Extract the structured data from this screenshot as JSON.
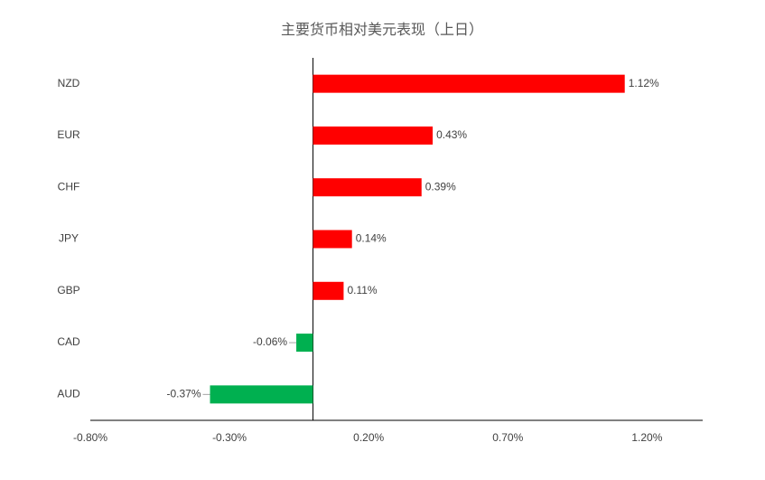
{
  "chart_data": {
    "type": "hbar",
    "title": "主要货币相对美元表现（上日）",
    "categories": [
      "NZD",
      "EUR",
      "CHF",
      "JPY",
      "GBP",
      "CAD",
      "AUD"
    ],
    "values": [
      1.12,
      0.43,
      0.39,
      0.14,
      0.11,
      -0.06,
      -0.37
    ],
    "value_labels": [
      "1.12%",
      "0.43%",
      "0.39%",
      "0.14%",
      "0.11%",
      "-0.06%",
      "-0.37%"
    ],
    "positive_color": "#ff0000",
    "negative_color": "#00b050",
    "xlim": [
      -0.8,
      1.4
    ],
    "xticks": [
      {
        "value": -0.8,
        "label": "-0.80%"
      },
      {
        "value": -0.3,
        "label": "-0.30%"
      },
      {
        "value": 0.2,
        "label": "0.20%"
      },
      {
        "value": 0.7,
        "label": "0.70%"
      },
      {
        "value": 1.2,
        "label": "1.20%"
      }
    ],
    "grid": false
  }
}
